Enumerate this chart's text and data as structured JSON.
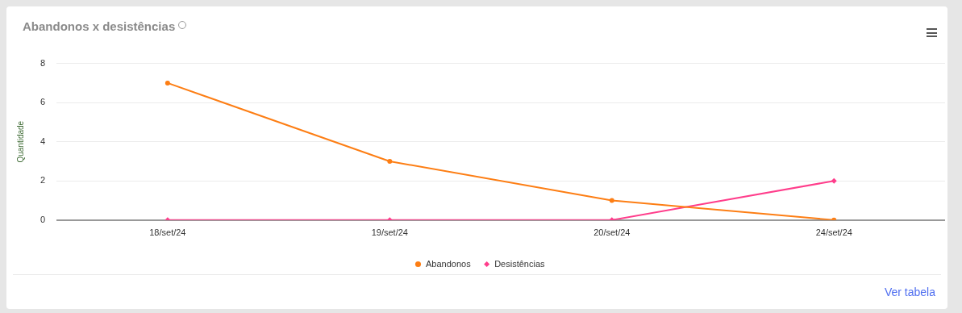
{
  "chart_data": {
    "type": "line",
    "title": "Abandonos x desistências",
    "ylabel": "Quantidade",
    "categories": [
      "18/set/24",
      "19/set/24",
      "20/set/24",
      "24/set/24"
    ],
    "series": [
      {
        "name": "Abandonos",
        "color": "#fd7e14",
        "marker": "circle",
        "values": [
          7,
          3,
          1,
          0
        ]
      },
      {
        "name": "Desistências",
        "color": "#ff3d8b",
        "marker": "diamond",
        "values": [
          0,
          0,
          0,
          2
        ]
      }
    ],
    "ylim": [
      0,
      8
    ],
    "yticks": [
      0,
      2,
      4,
      6,
      8
    ],
    "grid": "y",
    "legend": "bottom",
    "line_style": "solid",
    "annotations": [
      "Ver tabela"
    ]
  }
}
